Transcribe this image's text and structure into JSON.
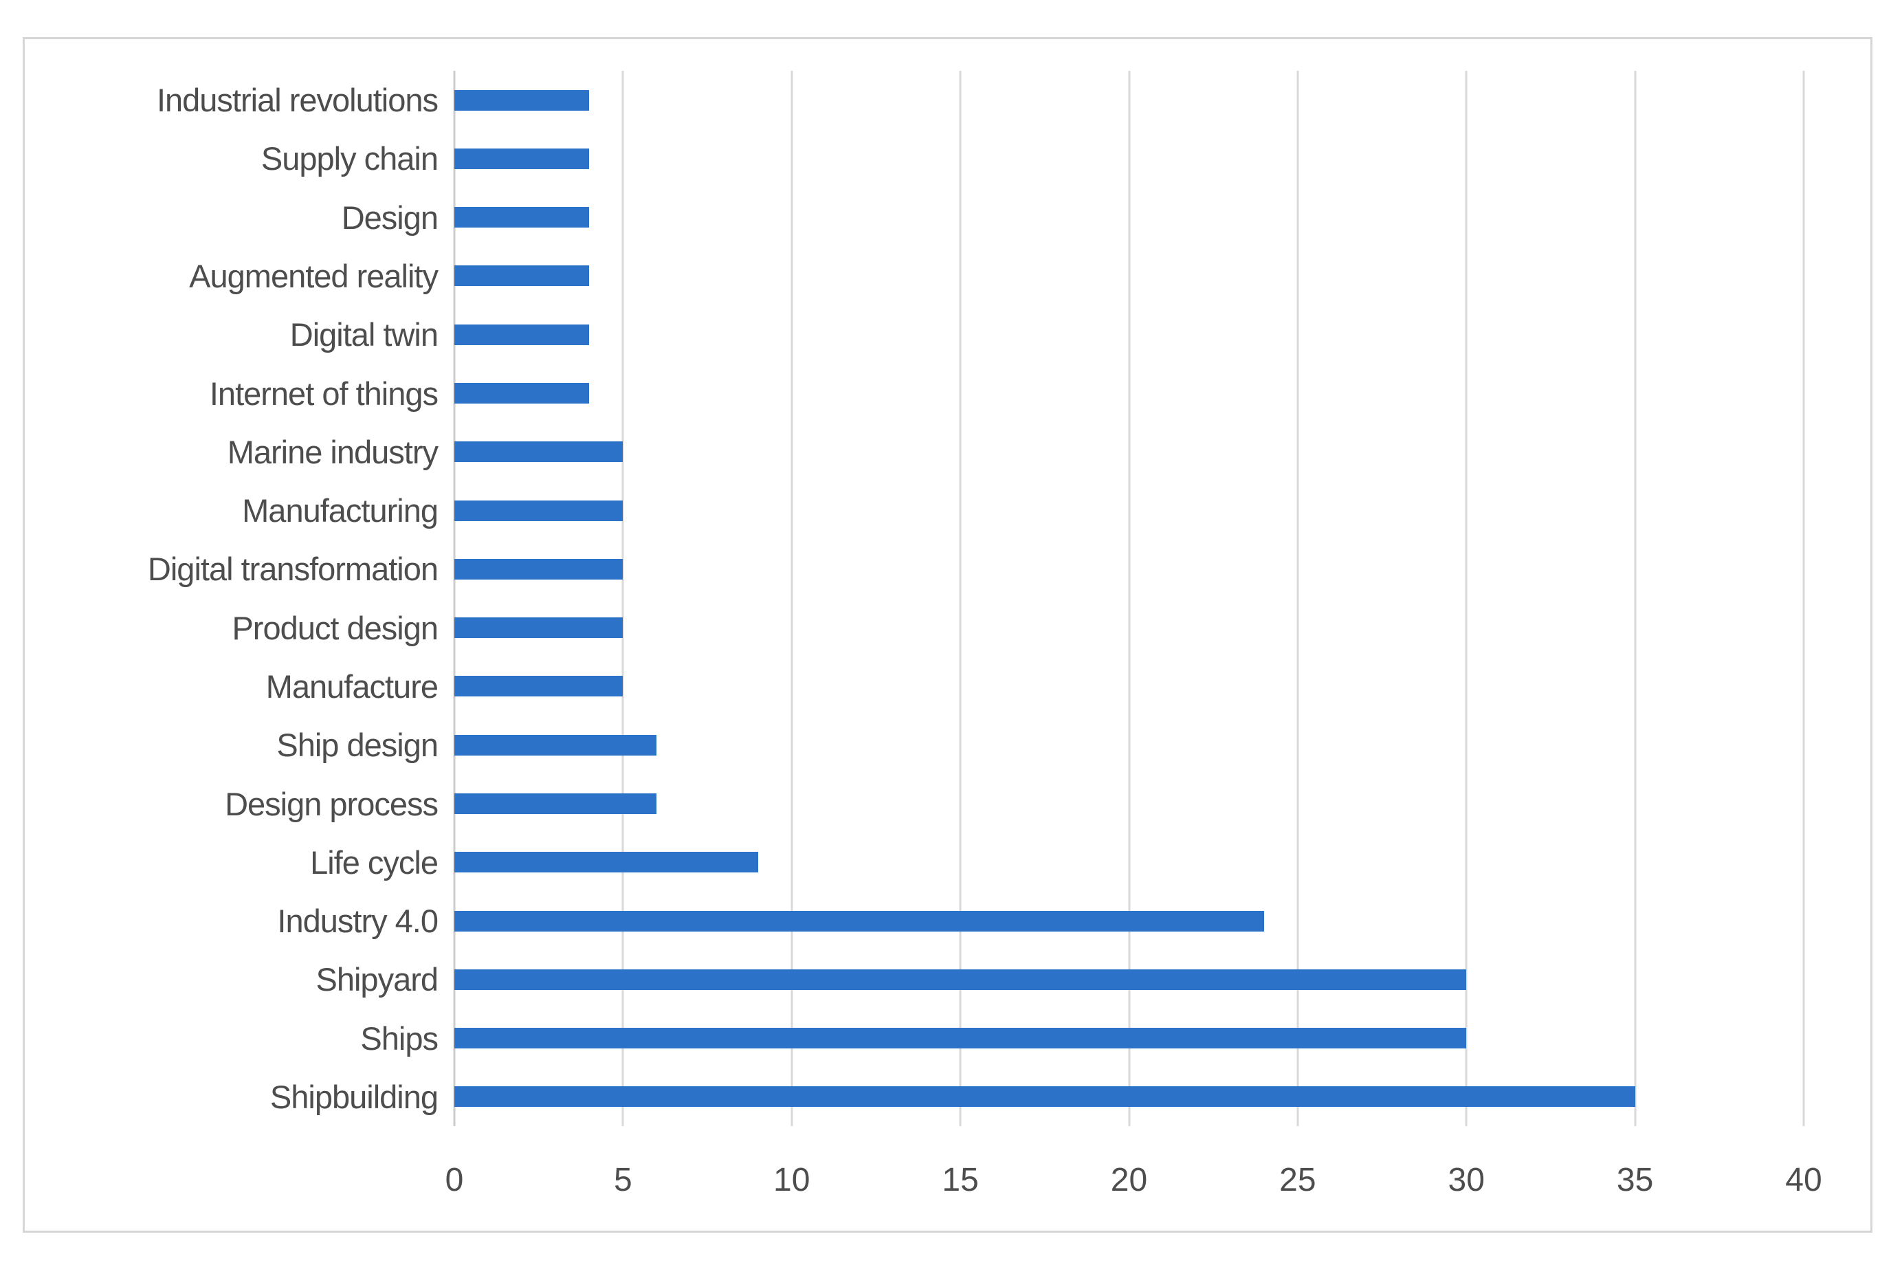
{
  "chart_data": {
    "type": "bar",
    "orientation": "horizontal",
    "title": "",
    "xlabel": "",
    "ylabel": "",
    "categories": [
      "Industrial revolutions",
      "Supply chain",
      "Design",
      "Augmented reality",
      "Digital twin",
      "Internet of things",
      "Marine industry",
      "Manufacturing",
      "Digital transformation",
      "Product design",
      "Manufacture",
      "Ship design",
      "Design process",
      "Life cycle",
      "Industry 4.0",
      "Shipyard",
      "Ships",
      "Shipbuilding"
    ],
    "values": [
      4,
      4,
      4,
      4,
      4,
      4,
      5,
      5,
      5,
      5,
      5,
      6,
      6,
      9,
      24,
      30,
      30,
      35
    ],
    "xlim": [
      0,
      40
    ],
    "x_ticks": [
      "0",
      "5",
      "10",
      "15",
      "20",
      "25",
      "30",
      "35",
      "40"
    ],
    "grid": "vertical-gridlines-on",
    "legend": "none",
    "colors": {
      "bar": "#2b72c8",
      "gridline": "#d9d9d9",
      "axis_line": "#cccccc",
      "label_text": "#4d4d4d",
      "figure_border": "#d6d6d6",
      "background": "#ffffff"
    }
  }
}
